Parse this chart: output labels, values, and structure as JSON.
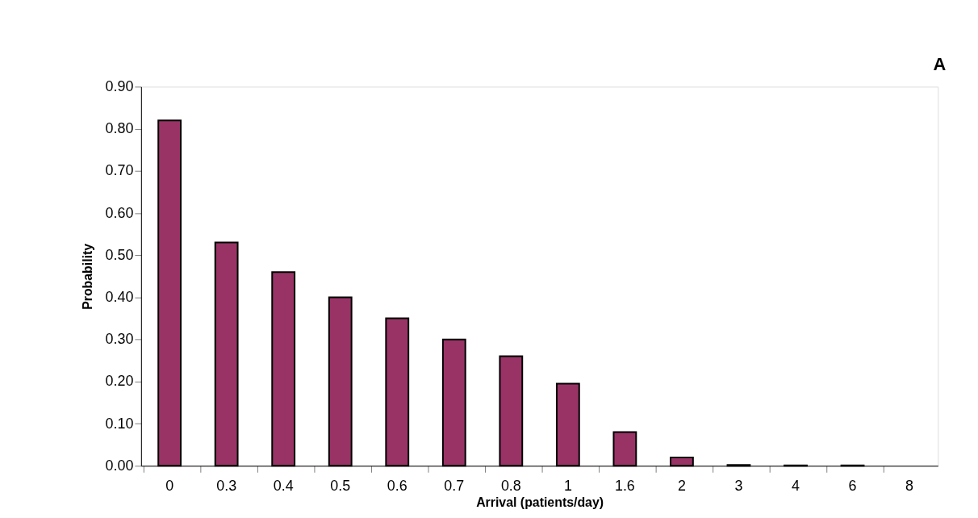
{
  "chart_data": {
    "type": "bar",
    "xlabel": "Arrival (patients/day)",
    "ylabel": "Probability",
    "annotations": [
      "A"
    ],
    "categories": [
      "0",
      "0.3",
      "0.4",
      "0.5",
      "0.6",
      "0.7",
      "0.8",
      "1",
      "1.6",
      "2",
      "3",
      "4",
      "6",
      "8"
    ],
    "values": [
      0.82,
      0.53,
      0.46,
      0.4,
      0.35,
      0.3,
      0.26,
      0.195,
      0.08,
      0.02,
      0.002,
      0.001,
      0.001,
      0
    ],
    "color": "#993366",
    "ylim": [
      0,
      0.9
    ],
    "yticks": [
      {
        "value": 0,
        "label": "0.00"
      },
      {
        "value": 0.1,
        "label": "0.10"
      },
      {
        "value": 0.2,
        "label": "0.20"
      },
      {
        "value": 0.3,
        "label": "0.30"
      },
      {
        "value": 0.4,
        "label": "0.40"
      },
      {
        "value": 0.5,
        "label": "0.50"
      },
      {
        "value": 0.6,
        "label": "0.60"
      },
      {
        "value": 0.7,
        "label": "0.70"
      },
      {
        "value": 0.8,
        "label": "0.80"
      },
      {
        "value": 0.9,
        "label": "0.90"
      }
    ],
    "grid": false
  }
}
